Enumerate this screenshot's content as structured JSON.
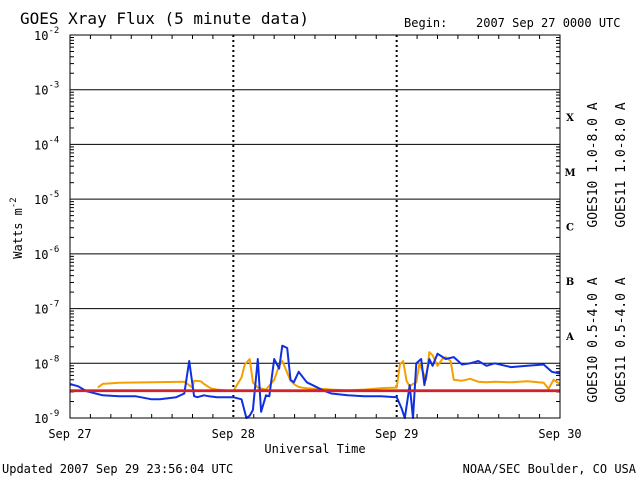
{
  "header": {
    "title": "GOES Xray Flux (5 minute data)",
    "begin_label": "Begin:",
    "begin_date": "2007 Sep 27 0000 UTC"
  },
  "footer": {
    "updated": "Updated 2007 Sep 29 23:56:04 UTC",
    "source": "NOAA/SEC Boulder, CO USA"
  },
  "colors": {
    "goes10_long": "#7a1fa0",
    "goes11_long": "#e0201c",
    "goes10_short": "#f5a000",
    "goes11_short": "#1030e0",
    "grid": "#000000"
  },
  "chart_data": {
    "type": "line",
    "title": "GOES Xray Flux (5 minute data)",
    "xlabel": "Universal Time",
    "ylabel": "Watts m",
    "ylabel_exp": "-2",
    "y_scale": "log",
    "ylim": [
      1e-09,
      0.01
    ],
    "xlim": [
      0,
      3
    ],
    "x_tick_labels": [
      "Sep 27",
      "Sep 28",
      "Sep 29",
      "Sep 30"
    ],
    "y_tick_labels": [
      {
        "base": "10",
        "exp": "-2"
      },
      {
        "base": "10",
        "exp": "-3"
      },
      {
        "base": "10",
        "exp": "-4"
      },
      {
        "base": "10",
        "exp": "-5"
      },
      {
        "base": "10",
        "exp": "-6"
      },
      {
        "base": "10",
        "exp": "-7"
      },
      {
        "base": "10",
        "exp": "-8"
      },
      {
        "base": "10",
        "exp": "-9"
      }
    ],
    "flare_classes": [
      "X",
      "M",
      "C",
      "B",
      "A"
    ],
    "grid": true,
    "series": [
      {
        "name": "GOES10 1.0-8.0 A",
        "color_key": "goes10_long",
        "x": [
          0,
          3
        ],
        "y": [
          3.2e-09,
          3.2e-09
        ]
      },
      {
        "name": "GOES11 1.0-8.0 A",
        "color_key": "goes11_long",
        "x": [
          0,
          3
        ],
        "y": [
          3.1e-09,
          3.1e-09
        ]
      },
      {
        "name": "GOES10 0.5-4.0 A",
        "color_key": "goes10_short",
        "x": [
          0.17,
          0.2,
          0.3,
          0.5,
          0.7,
          0.75,
          0.76,
          0.8,
          0.82,
          0.86,
          0.9,
          0.95,
          1.0,
          1.05,
          1.07,
          1.1,
          1.12,
          1.15,
          1.2,
          1.25,
          1.28,
          1.3,
          1.35,
          1.38,
          1.4,
          1.42,
          1.45,
          1.5,
          1.55,
          1.6,
          1.7,
          1.8,
          1.9,
          2.0,
          2.02,
          2.04,
          2.06,
          2.08,
          2.1,
          2.12,
          2.14,
          2.18,
          2.2,
          2.22,
          2.25,
          2.28,
          2.3,
          2.33,
          2.35,
          2.4,
          2.45,
          2.5,
          2.55,
          2.6,
          2.7,
          2.8,
          2.9,
          2.93,
          2.96,
          3.0
        ],
        "y": [
          3.6e-09,
          4.2e-09,
          4.4e-09,
          4.5e-09,
          4.6e-09,
          3.6e-09,
          4.8e-09,
          4.7e-09,
          4.2e-09,
          3.5e-09,
          3.3e-09,
          3.2e-09,
          3.1e-09,
          5.5e-09,
          9.5e-09,
          1.2e-08,
          4.5e-09,
          3.6e-09,
          3.3e-09,
          5e-09,
          9e-09,
          1.1e-08,
          4.8e-09,
          4e-09,
          3.7e-09,
          3.6e-09,
          3.5e-09,
          3.4e-09,
          3.4e-09,
          3.3e-09,
          3.2e-09,
          3.3e-09,
          3.5e-09,
          3.6e-09,
          9.5e-09,
          1.1e-08,
          4.8e-09,
          3.8e-09,
          4.2e-09,
          4.5e-09,
          1e-08,
          5e-09,
          1.6e-08,
          1.4e-08,
          9e-09,
          1.2e-08,
          1.3e-08,
          1.1e-08,
          5e-09,
          4.8e-09,
          5.2e-09,
          4.6e-09,
          4.5e-09,
          4.6e-09,
          4.5e-09,
          4.7e-09,
          4.4e-09,
          3.4e-09,
          5e-09,
          4.2e-09
        ]
      },
      {
        "name": "GOES11 0.5-4.0 A",
        "color_key": "goes11_short",
        "x": [
          0,
          0.05,
          0.1,
          0.2,
          0.3,
          0.4,
          0.5,
          0.55,
          0.6,
          0.65,
          0.7,
          0.73,
          0.76,
          0.78,
          0.82,
          0.85,
          0.9,
          1.0,
          1.05,
          1.08,
          1.1,
          1.12,
          1.15,
          1.17,
          1.2,
          1.22,
          1.25,
          1.28,
          1.3,
          1.33,
          1.35,
          1.37,
          1.4,
          1.45,
          1.5,
          1.55,
          1.6,
          1.7,
          1.8,
          1.9,
          2.0,
          2.03,
          2.05,
          2.08,
          2.1,
          2.12,
          2.15,
          2.17,
          2.2,
          2.22,
          2.25,
          2.3,
          2.35,
          2.4,
          2.45,
          2.5,
          2.55,
          2.6,
          2.7,
          2.8,
          2.9,
          2.95,
          3.0
        ],
        "y": [
          4.2e-09,
          3.8e-09,
          3.1e-09,
          2.6e-09,
          2.5e-09,
          2.5e-09,
          2.2e-09,
          2.2e-09,
          2.3e-09,
          2.4e-09,
          2.8e-09,
          1.1e-08,
          2.5e-09,
          2.4e-09,
          2.6e-09,
          2.5e-09,
          2.4e-09,
          2.4e-09,
          2.2e-09,
          1e-09,
          1.1e-09,
          1.4e-09,
          1.2e-08,
          1.3e-09,
          2.6e-09,
          2.5e-09,
          1.2e-08,
          8e-09,
          2.1e-08,
          1.9e-08,
          5e-09,
          4.5e-09,
          7e-09,
          4.5e-09,
          3.8e-09,
          3.2e-09,
          2.8e-09,
          2.6e-09,
          2.5e-09,
          2.5e-09,
          2.4e-09,
          1.5e-09,
          1e-09,
          4e-09,
          1e-09,
          1e-08,
          1.2e-08,
          4e-09,
          1.2e-08,
          9e-09,
          1.5e-08,
          1.2e-08,
          1.3e-08,
          9.5e-09,
          1e-08,
          1.1e-08,
          9e-09,
          1e-08,
          8.5e-09,
          9e-09,
          9.5e-09,
          7e-09,
          6.5e-09
        ]
      }
    ]
  }
}
